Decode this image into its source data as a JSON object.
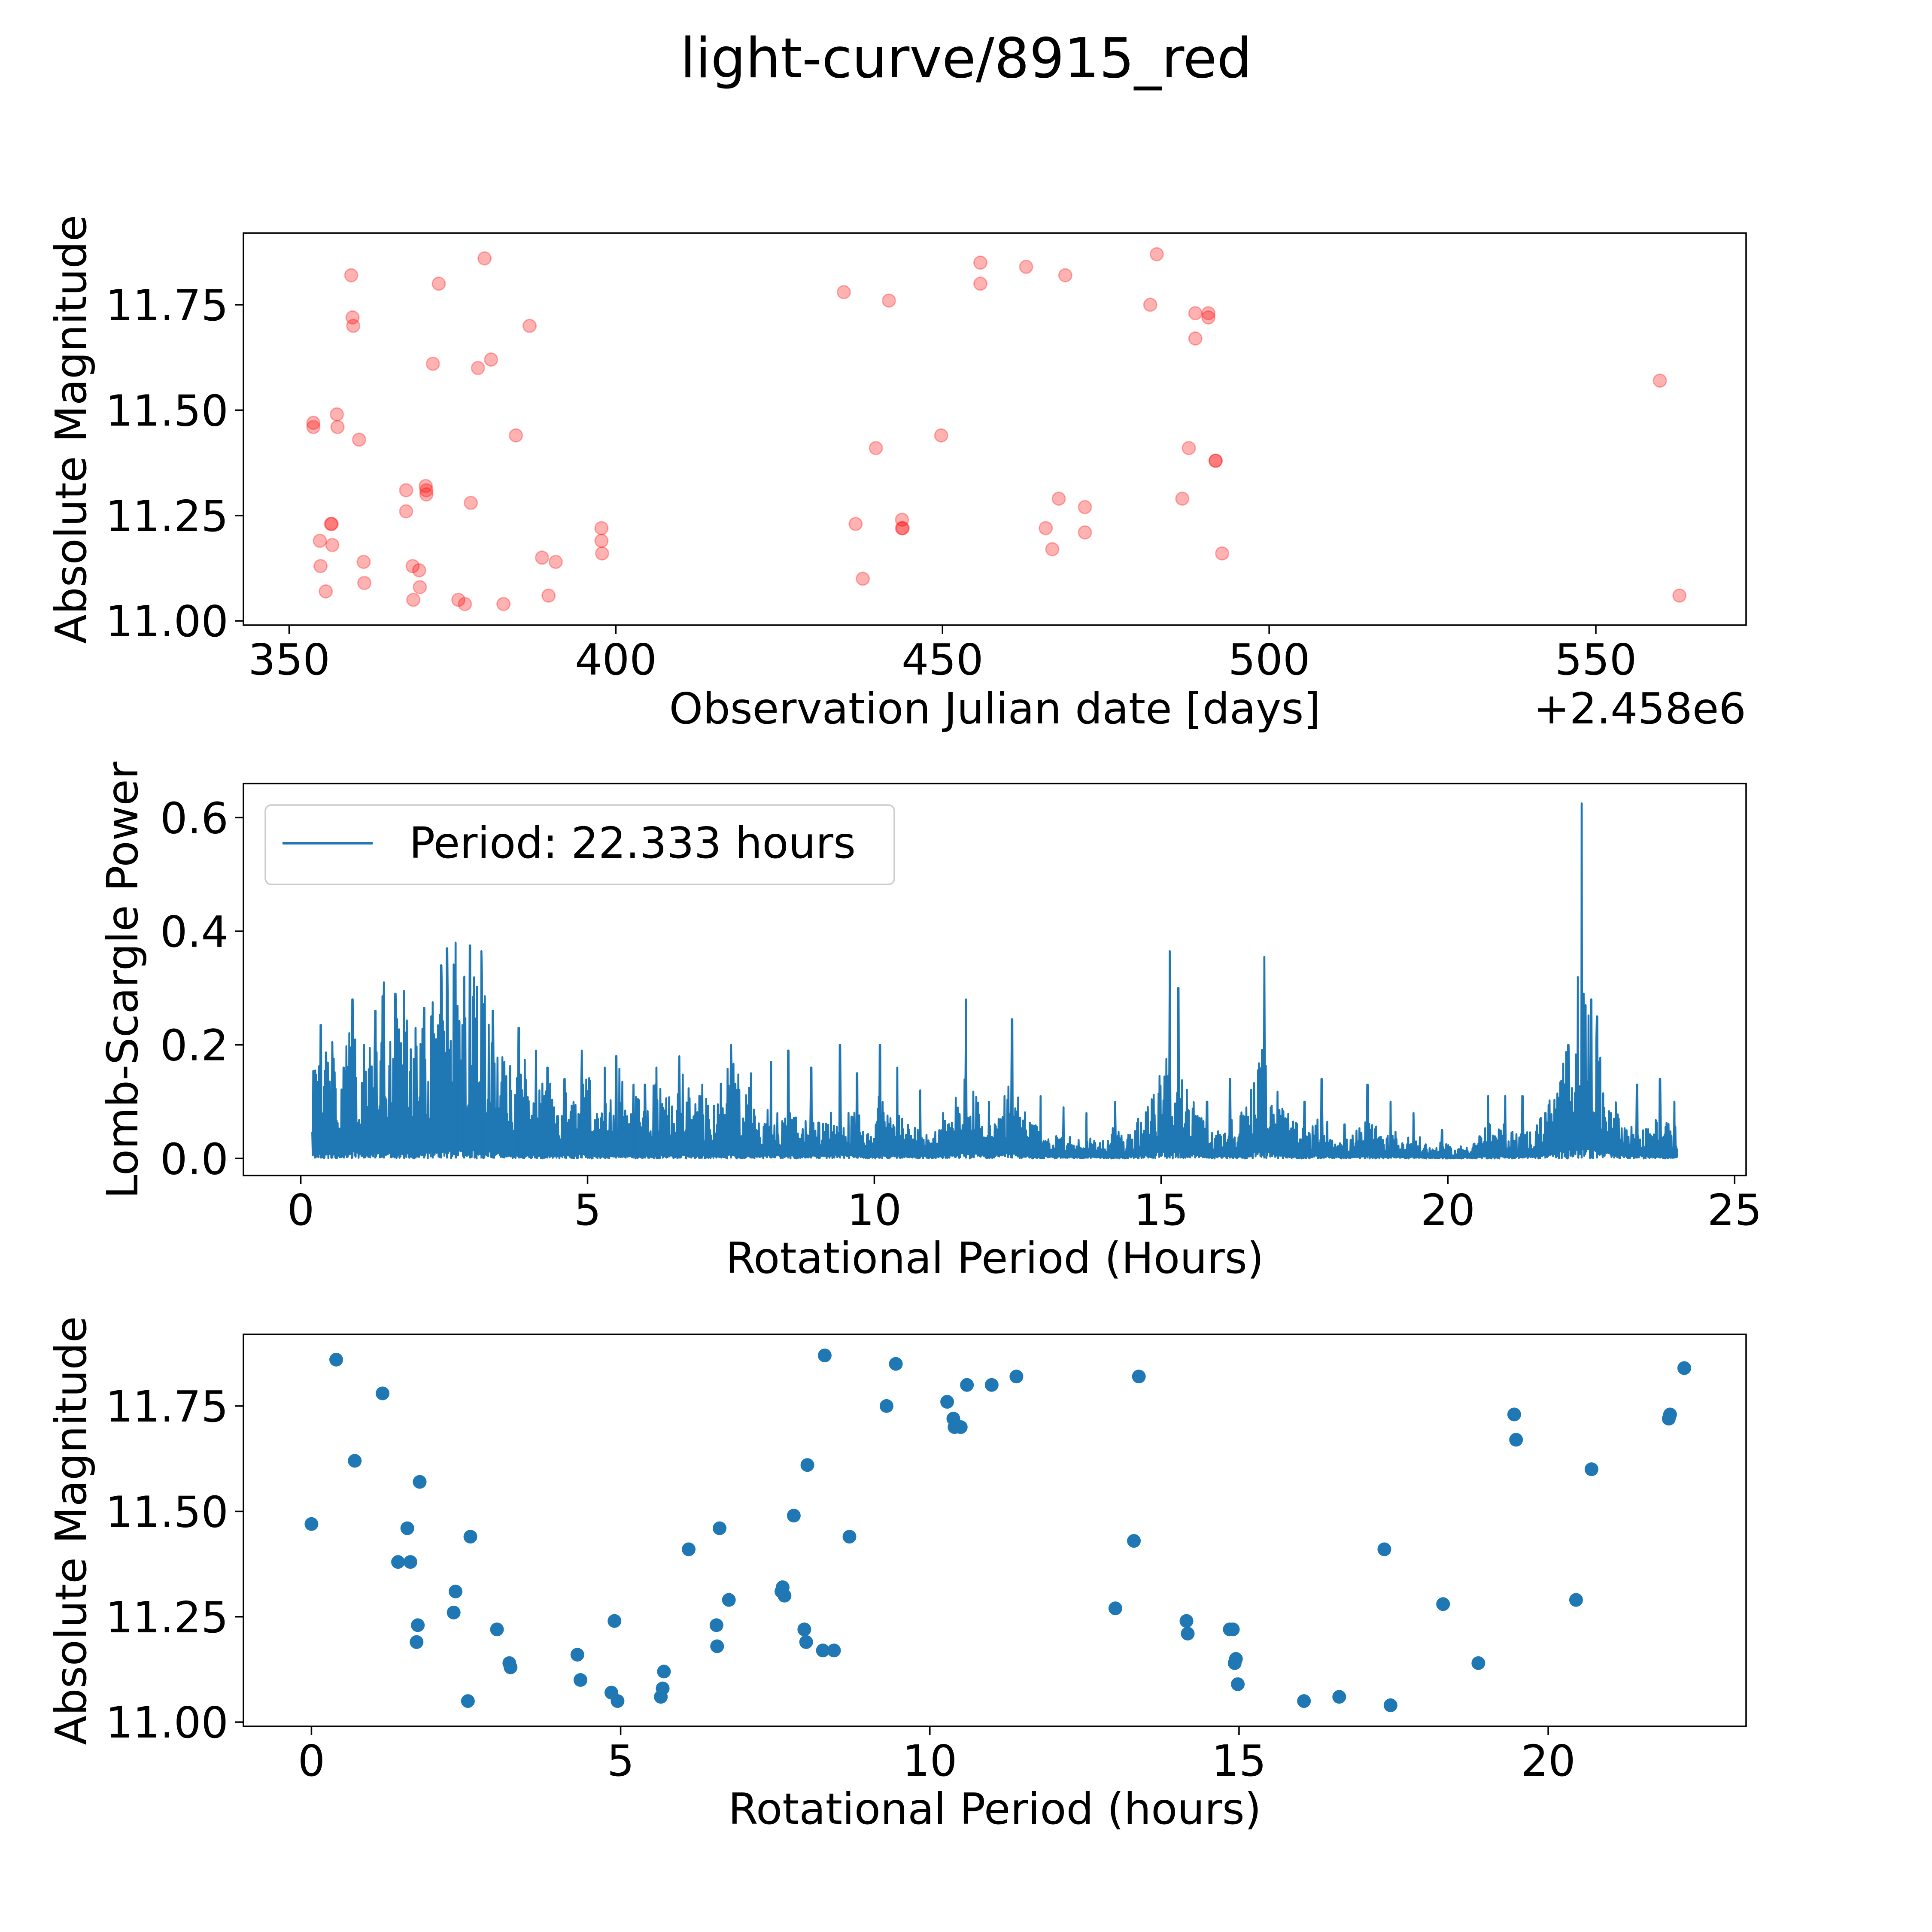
{
  "figure": {
    "title": "light-curve/8915_red"
  },
  "chart_data": [
    {
      "type": "scatter",
      "name": "observations",
      "xlabel": "Observation Julian date [days]",
      "ylabel": "Absolute Magnitude",
      "x_offset_label": "+2.458e6",
      "xlim": [
        343,
        573
      ],
      "ylim": [
        10.99,
        11.92
      ],
      "xticks": [
        350,
        400,
        450,
        500,
        550
      ],
      "xtick_labels": [
        "350",
        "400",
        "450",
        "500",
        "550"
      ],
      "yticks": [
        11.0,
        11.25,
        11.5,
        11.75
      ],
      "ytick_labels": [
        "11.00",
        "11.25",
        "11.50",
        "11.75"
      ],
      "color": "#ff0000",
      "points": [
        [
          353.7,
          11.47
        ],
        [
          353.7,
          11.46
        ],
        [
          354.7,
          11.19
        ],
        [
          354.8,
          11.13
        ],
        [
          355.6,
          11.07
        ],
        [
          356.4,
          11.23
        ],
        [
          356.5,
          11.23
        ],
        [
          356.6,
          11.18
        ],
        [
          357.3,
          11.49
        ],
        [
          357.4,
          11.46
        ],
        [
          359.5,
          11.82
        ],
        [
          359.7,
          11.72
        ],
        [
          359.8,
          11.7
        ],
        [
          360.7,
          11.43
        ],
        [
          361.4,
          11.14
        ],
        [
          361.5,
          11.09
        ],
        [
          367.9,
          11.31
        ],
        [
          367.9,
          11.26
        ],
        [
          368.9,
          11.13
        ],
        [
          369.0,
          11.05
        ],
        [
          369.9,
          11.12
        ],
        [
          370.0,
          11.08
        ],
        [
          370.9,
          11.32
        ],
        [
          371.0,
          11.31
        ],
        [
          371.0,
          11.3
        ],
        [
          372.0,
          11.61
        ],
        [
          372.9,
          11.8
        ],
        [
          375.9,
          11.05
        ],
        [
          376.9,
          11.04
        ],
        [
          377.8,
          11.28
        ],
        [
          378.9,
          11.6
        ],
        [
          379.9,
          11.86
        ],
        [
          380.9,
          11.62
        ],
        [
          382.8,
          11.04
        ],
        [
          384.7,
          11.44
        ],
        [
          386.8,
          11.7
        ],
        [
          388.7,
          11.15
        ],
        [
          389.7,
          11.06
        ],
        [
          390.8,
          11.14
        ],
        [
          397.8,
          11.22
        ],
        [
          397.8,
          11.19
        ],
        [
          397.9,
          11.16
        ],
        [
          434.9,
          11.78
        ],
        [
          436.7,
          11.23
        ],
        [
          437.8,
          11.1
        ],
        [
          439.8,
          11.41
        ],
        [
          441.8,
          11.76
        ],
        [
          443.8,
          11.24
        ],
        [
          443.8,
          11.22
        ],
        [
          443.9,
          11.22
        ],
        [
          449.8,
          11.44
        ],
        [
          455.8,
          11.85
        ],
        [
          455.8,
          11.8
        ],
        [
          462.8,
          11.84
        ],
        [
          465.8,
          11.22
        ],
        [
          466.8,
          11.17
        ],
        [
          467.8,
          11.29
        ],
        [
          468.8,
          11.82
        ],
        [
          471.8,
          11.27
        ],
        [
          471.8,
          11.21
        ],
        [
          481.8,
          11.75
        ],
        [
          482.8,
          11.87
        ],
        [
          486.7,
          11.29
        ],
        [
          487.7,
          11.41
        ],
        [
          488.7,
          11.73
        ],
        [
          488.7,
          11.67
        ],
        [
          490.7,
          11.73
        ],
        [
          490.7,
          11.72
        ],
        [
          491.8,
          11.38
        ],
        [
          491.8,
          11.38
        ],
        [
          492.8,
          11.16
        ],
        [
          559.8,
          11.57
        ],
        [
          562.8,
          11.06
        ]
      ]
    },
    {
      "type": "line",
      "name": "periodogram",
      "xlabel": "Rotational Period (Hours)",
      "ylabel": "Lomb-Scargle Power",
      "xlim": [
        -1.0,
        25.2
      ],
      "ylim": [
        -0.03,
        0.66
      ],
      "xticks": [
        0,
        5,
        10,
        15,
        20,
        25
      ],
      "xtick_labels": [
        "0",
        "5",
        "10",
        "15",
        "20",
        "25"
      ],
      "yticks": [
        0.0,
        0.2,
        0.4,
        0.6
      ],
      "ytick_labels": [
        "0.0",
        "0.2",
        "0.4",
        "0.6"
      ],
      "color": "#1f77b4",
      "legend": {
        "label": "Period: 22.333 hours",
        "location": "upper-left"
      },
      "x_range": [
        0.2,
        24.0
      ],
      "peaks": [
        [
          0.25,
          0.155
        ],
        [
          0.35,
          0.235
        ],
        [
          0.55,
          0.205
        ],
        [
          0.75,
          0.16
        ],
        [
          0.9,
          0.28
        ],
        [
          1.1,
          0.2
        ],
        [
          1.3,
          0.26
        ],
        [
          1.45,
          0.31
        ],
        [
          1.65,
          0.29
        ],
        [
          1.8,
          0.295
        ],
        [
          2.0,
          0.23
        ],
        [
          2.15,
          0.265
        ],
        [
          2.3,
          0.275
        ],
        [
          2.45,
          0.34
        ],
        [
          2.55,
          0.37
        ],
        [
          2.7,
          0.38
        ],
        [
          2.85,
          0.32
        ],
        [
          2.95,
          0.375
        ],
        [
          3.15,
          0.365
        ],
        [
          3.35,
          0.26
        ],
        [
          3.55,
          0.17
        ],
        [
          3.8,
          0.23
        ],
        [
          4.1,
          0.19
        ],
        [
          4.3,
          0.16
        ],
        [
          4.6,
          0.14
        ],
        [
          4.9,
          0.19
        ],
        [
          5.3,
          0.16
        ],
        [
          5.5,
          0.18
        ],
        [
          5.8,
          0.13
        ],
        [
          6.0,
          0.13
        ],
        [
          6.2,
          0.16
        ],
        [
          6.6,
          0.18
        ],
        [
          7.0,
          0.13
        ],
        [
          7.5,
          0.2
        ],
        [
          7.85,
          0.15
        ],
        [
          8.2,
          0.17
        ],
        [
          8.5,
          0.19
        ],
        [
          8.9,
          0.16
        ],
        [
          9.4,
          0.2
        ],
        [
          9.7,
          0.15
        ],
        [
          10.1,
          0.2
        ],
        [
          10.4,
          0.16
        ],
        [
          10.8,
          0.12
        ],
        [
          11.2,
          0.08
        ],
        [
          11.6,
          0.28
        ],
        [
          12.0,
          0.1
        ],
        [
          12.4,
          0.245
        ],
        [
          12.9,
          0.11
        ],
        [
          13.3,
          0.09
        ],
        [
          13.7,
          0.08
        ],
        [
          14.2,
          0.1
        ],
        [
          14.6,
          0.07
        ],
        [
          15.15,
          0.365
        ],
        [
          15.3,
          0.3
        ],
        [
          15.8,
          0.1
        ],
        [
          16.2,
          0.14
        ],
        [
          16.8,
          0.355
        ],
        [
          17.2,
          0.07
        ],
        [
          17.5,
          0.1
        ],
        [
          17.8,
          0.14
        ],
        [
          18.2,
          0.06
        ],
        [
          18.6,
          0.13
        ],
        [
          19.0,
          0.1
        ],
        [
          19.4,
          0.08
        ],
        [
          19.9,
          0.05
        ],
        [
          20.7,
          0.11
        ],
        [
          21.0,
          0.11
        ],
        [
          21.3,
          0.11
        ],
        [
          21.7,
          0.08
        ],
        [
          22.1,
          0.2
        ],
        [
          22.333,
          0.625
        ],
        [
          22.5,
          0.28
        ],
        [
          22.6,
          0.25
        ],
        [
          22.9,
          0.07
        ],
        [
          23.3,
          0.13
        ],
        [
          23.7,
          0.14
        ],
        [
          23.95,
          0.1
        ]
      ]
    },
    {
      "type": "scatter",
      "name": "folded",
      "xlabel": "Rotational Period (hours)",
      "ylabel": "Absolute Magnitude",
      "xlim": [
        -1.1,
        23.2
      ],
      "ylim": [
        10.99,
        11.92
      ],
      "xticks": [
        0,
        5,
        10,
        15,
        20
      ],
      "xtick_labels": [
        "0",
        "5",
        "10",
        "15",
        "20"
      ],
      "yticks": [
        11.0,
        11.25,
        11.5,
        11.75
      ],
      "ytick_labels": [
        "11.00",
        "11.25",
        "11.50",
        "11.75"
      ],
      "color": "#1f77b4",
      "points": [
        [
          0.0,
          11.47
        ],
        [
          0.4,
          11.86
        ],
        [
          0.7,
          11.62
        ],
        [
          1.15,
          11.78
        ],
        [
          1.4,
          11.38
        ],
        [
          1.55,
          11.46
        ],
        [
          1.6,
          11.38
        ],
        [
          1.7,
          11.19
        ],
        [
          1.72,
          11.23
        ],
        [
          1.75,
          11.57
        ],
        [
          2.3,
          11.26
        ],
        [
          2.33,
          11.31
        ],
        [
          2.53,
          11.05
        ],
        [
          2.57,
          11.44
        ],
        [
          3.0,
          11.22
        ],
        [
          3.2,
          11.14
        ],
        [
          3.22,
          11.13
        ],
        [
          4.3,
          11.16
        ],
        [
          4.35,
          11.1
        ],
        [
          4.85,
          11.07
        ],
        [
          4.9,
          11.24
        ],
        [
          4.95,
          11.05
        ],
        [
          5.65,
          11.06
        ],
        [
          5.68,
          11.08
        ],
        [
          5.7,
          11.12
        ],
        [
          6.1,
          11.41
        ],
        [
          6.55,
          11.23
        ],
        [
          6.56,
          11.18
        ],
        [
          6.6,
          11.46
        ],
        [
          6.75,
          11.29
        ],
        [
          7.6,
          11.31
        ],
        [
          7.62,
          11.32
        ],
        [
          7.65,
          11.3
        ],
        [
          7.8,
          11.49
        ],
        [
          7.97,
          11.22
        ],
        [
          8.0,
          11.19
        ],
        [
          8.02,
          11.61
        ],
        [
          8.27,
          11.17
        ],
        [
          8.3,
          11.87
        ],
        [
          8.45,
          11.17
        ],
        [
          8.7,
          11.44
        ],
        [
          9.3,
          11.75
        ],
        [
          9.45,
          11.85
        ],
        [
          10.28,
          11.76
        ],
        [
          10.38,
          11.72
        ],
        [
          10.4,
          11.7
        ],
        [
          10.5,
          11.7
        ],
        [
          10.6,
          11.8
        ],
        [
          11.0,
          11.8
        ],
        [
          11.4,
          11.82
        ],
        [
          13.0,
          11.27
        ],
        [
          13.3,
          11.43
        ],
        [
          13.38,
          11.82
        ],
        [
          14.15,
          11.24
        ],
        [
          14.17,
          11.21
        ],
        [
          14.85,
          11.22
        ],
        [
          14.9,
          11.22
        ],
        [
          14.93,
          11.14
        ],
        [
          14.95,
          11.15
        ],
        [
          14.98,
          11.09
        ],
        [
          16.05,
          11.05
        ],
        [
          16.62,
          11.06
        ],
        [
          17.35,
          11.41
        ],
        [
          17.45,
          11.04
        ],
        [
          18.3,
          11.28
        ],
        [
          18.87,
          11.14
        ],
        [
          19.45,
          11.73
        ],
        [
          19.48,
          11.67
        ],
        [
          20.45,
          11.29
        ],
        [
          20.7,
          11.6
        ],
        [
          21.95,
          11.72
        ],
        [
          21.97,
          11.73
        ],
        [
          22.2,
          11.84
        ]
      ]
    }
  ]
}
